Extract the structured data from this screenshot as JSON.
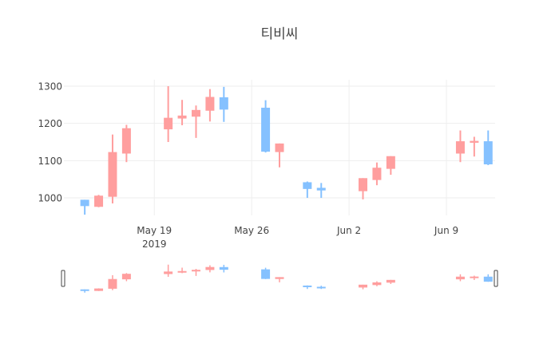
{
  "chart_data": {
    "type": "candlestick",
    "title": "티비씨",
    "xlabel": "",
    "ylabel": "",
    "ylim": [
      953,
      1317
    ],
    "grid": true,
    "legend": "none",
    "range_slider": true,
    "colors": {
      "increasing": "#ff9e9e",
      "decreasing": "#85c1ff",
      "grid": "#eeeeee",
      "handle": "#444444"
    },
    "x_ticks": [
      {
        "label": "May 19",
        "sublabel": "2019",
        "date": "2019-05-19"
      },
      {
        "label": "May 26",
        "sublabel": "",
        "date": "2019-05-26"
      },
      {
        "label": "Jun 2",
        "sublabel": "",
        "date": "2019-06-02"
      },
      {
        "label": "Jun 9",
        "sublabel": "",
        "date": "2019-06-09"
      }
    ],
    "y_ticks": [
      1000,
      1100,
      1200,
      1300
    ],
    "x_range": [
      "2019-05-13",
      "2019-06-12"
    ],
    "candles": [
      {
        "date": "2019-05-14",
        "open": 995,
        "high": 995,
        "low": 955,
        "close": 978
      },
      {
        "date": "2019-05-15",
        "open": 976,
        "high": 1008,
        "low": 975,
        "close": 1006
      },
      {
        "date": "2019-05-16",
        "open": 1003,
        "high": 1170,
        "low": 985,
        "close": 1123
      },
      {
        "date": "2019-05-17",
        "open": 1119,
        "high": 1196,
        "low": 1096,
        "close": 1187
      },
      {
        "date": "2019-05-20",
        "open": 1184,
        "high": 1300,
        "low": 1150,
        "close": 1215
      },
      {
        "date": "2019-05-21",
        "open": 1213,
        "high": 1263,
        "low": 1195,
        "close": 1221
      },
      {
        "date": "2019-05-22",
        "open": 1218,
        "high": 1248,
        "low": 1161,
        "close": 1236
      },
      {
        "date": "2019-05-23",
        "open": 1234,
        "high": 1292,
        "low": 1205,
        "close": 1271
      },
      {
        "date": "2019-05-24",
        "open": 1270,
        "high": 1298,
        "low": 1204,
        "close": 1237
      },
      {
        "date": "2019-05-27",
        "open": 1242,
        "high": 1262,
        "low": 1122,
        "close": 1124
      },
      {
        "date": "2019-05-28",
        "open": 1123,
        "high": 1146,
        "low": 1082,
        "close": 1146
      },
      {
        "date": "2019-05-30",
        "open": 1042,
        "high": 1044,
        "low": 1000,
        "close": 1024
      },
      {
        "date": "2019-05-31",
        "open": 1027,
        "high": 1040,
        "low": 1000,
        "close": 1020
      },
      {
        "date": "2019-06-03",
        "open": 1018,
        "high": 1053,
        "low": 996,
        "close": 1053
      },
      {
        "date": "2019-06-04",
        "open": 1048,
        "high": 1095,
        "low": 1034,
        "close": 1081
      },
      {
        "date": "2019-06-05",
        "open": 1078,
        "high": 1112,
        "low": 1062,
        "close": 1112
      },
      {
        "date": "2019-06-10",
        "open": 1119,
        "high": 1181,
        "low": 1096,
        "close": 1152
      },
      {
        "date": "2019-06-11",
        "open": 1148,
        "high": 1164,
        "low": 1111,
        "close": 1153
      },
      {
        "date": "2019-06-12",
        "open": 1152,
        "high": 1181,
        "low": 1088,
        "close": 1090
      }
    ]
  }
}
